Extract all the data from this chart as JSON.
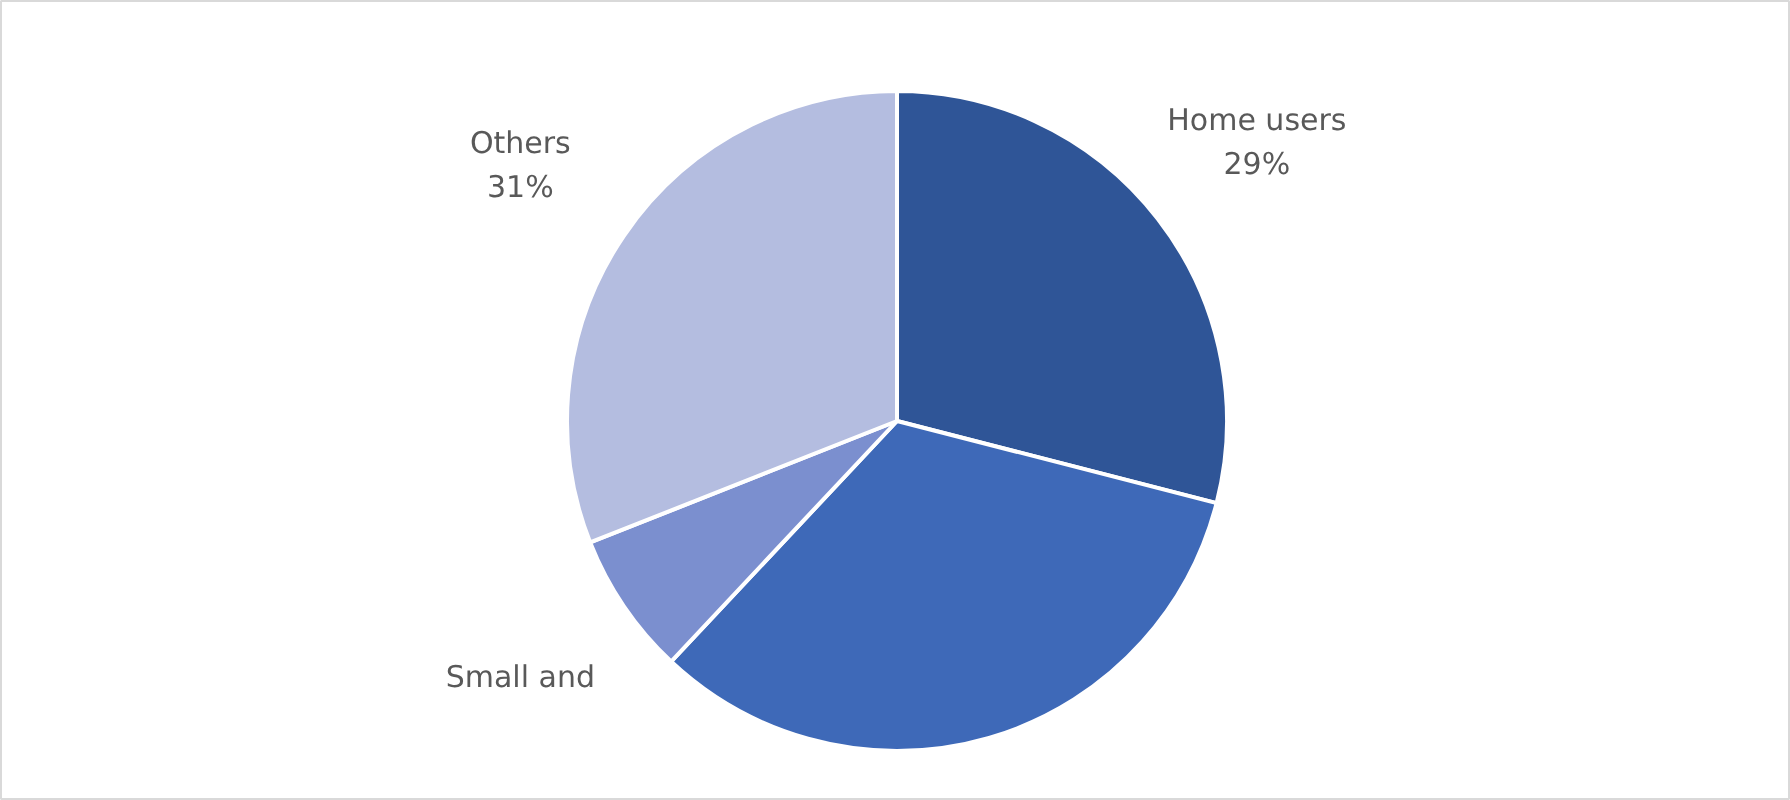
{
  "chart_data": {
    "type": "pie",
    "categories": [
      "Home users",
      null,
      "Small and",
      "Others"
    ],
    "values": [
      29,
      33,
      7,
      31
    ],
    "colors": [
      "#2f5597",
      "#3e69b8",
      "#7b8fcf",
      "#b4bde0"
    ],
    "value_labels": [
      "29%",
      null,
      null,
      "31%"
    ],
    "legend": false
  }
}
